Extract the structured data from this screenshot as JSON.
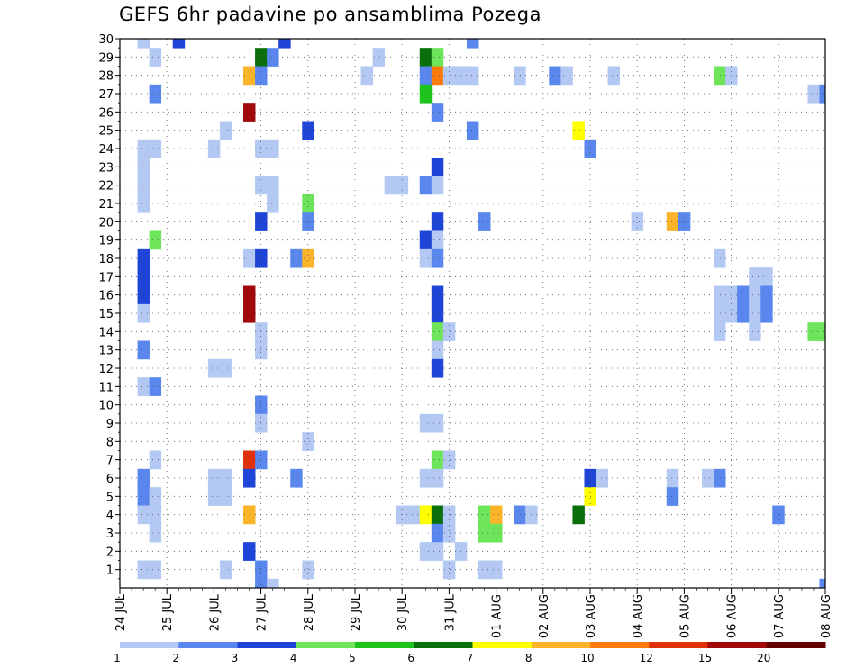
{
  "chart_data": {
    "type": "heatmap",
    "title": "GEFS 6hr padavine po ansamblima Pozega",
    "xlabel": "",
    "ylabel": "",
    "x_ticks": [
      "24 JUL",
      "25 JUL",
      "26 JUL",
      "27 JUL",
      "28 JUL",
      "29 JUL",
      "30 JUL",
      "31 JUL",
      "01 AUG",
      "02 AUG",
      "03 AUG",
      "04 AUG",
      "05 AUG",
      "06 AUG",
      "07 AUG",
      "08 AUG"
    ],
    "y_ticks": [
      "1",
      "2",
      "3",
      "4",
      "5",
      "6",
      "7",
      "8",
      "9",
      "10",
      "11",
      "12",
      "13",
      "14",
      "15",
      "16",
      "17",
      "18",
      "19",
      "20",
      "21",
      "22",
      "23",
      "24",
      "25",
      "26",
      "27",
      "28",
      "29",
      "30"
    ],
    "x_unit": "6-hour step from 24 JUL 00",
    "x_range": [
      0,
      60
    ],
    "y_range": [
      0,
      30
    ],
    "grid": true,
    "colorbar": {
      "position": "bottom",
      "labels": [
        "1",
        "2",
        "3",
        "4",
        "5",
        "6",
        "7",
        "8",
        "10",
        "12",
        "15",
        "20"
      ],
      "colors": [
        "#b4c8f4",
        "#5a87ee",
        "#1e44d8",
        "#6ee45a",
        "#1ec31e",
        "#0a6e0a",
        "#ffff00",
        "#fbb42a",
        "#fb7a0a",
        "#e0320a",
        "#a00a0a",
        "#640000"
      ]
    },
    "cells": [
      [
        2,
        30,
        1
      ],
      [
        5,
        30,
        3
      ],
      [
        14,
        30,
        3
      ],
      [
        30,
        30,
        2
      ],
      [
        3,
        29,
        1
      ],
      [
        12,
        29,
        6
      ],
      [
        13,
        29,
        2
      ],
      [
        22,
        29,
        1
      ],
      [
        26,
        29,
        6
      ],
      [
        27,
        29,
        4
      ],
      [
        11,
        28,
        8
      ],
      [
        12,
        28,
        2
      ],
      [
        21,
        28,
        1
      ],
      [
        26,
        28,
        2
      ],
      [
        27,
        28,
        9
      ],
      [
        28,
        28,
        1
      ],
      [
        29,
        28,
        1
      ],
      [
        30,
        28,
        1
      ],
      [
        34,
        28,
        1
      ],
      [
        37,
        28,
        2
      ],
      [
        38,
        28,
        1
      ],
      [
        42,
        28,
        1
      ],
      [
        51,
        28,
        4
      ],
      [
        52,
        28,
        1
      ],
      [
        3,
        27,
        2
      ],
      [
        26,
        27,
        5
      ],
      [
        59,
        27,
        1
      ],
      [
        60,
        27,
        2
      ],
      [
        11,
        26,
        11
      ],
      [
        27,
        26,
        2
      ],
      [
        9,
        25,
        1
      ],
      [
        16,
        25,
        3
      ],
      [
        30,
        25,
        2
      ],
      [
        39,
        25,
        7
      ],
      [
        2,
        24,
        1
      ],
      [
        3,
        24,
        1
      ],
      [
        8,
        24,
        1
      ],
      [
        12,
        24,
        1
      ],
      [
        13,
        24,
        1
      ],
      [
        40,
        24,
        2
      ],
      [
        2,
        23,
        1
      ],
      [
        27,
        23,
        3
      ],
      [
        2,
        22,
        1
      ],
      [
        12,
        22,
        1
      ],
      [
        13,
        22,
        1
      ],
      [
        23,
        22,
        1
      ],
      [
        24,
        22,
        1
      ],
      [
        26,
        22,
        2
      ],
      [
        27,
        22,
        1
      ],
      [
        2,
        21,
        1
      ],
      [
        13,
        21,
        1
      ],
      [
        16,
        21,
        4
      ],
      [
        12,
        20,
        3
      ],
      [
        16,
        20,
        2
      ],
      [
        27,
        20,
        3
      ],
      [
        31,
        20,
        2
      ],
      [
        44,
        20,
        1
      ],
      [
        47,
        20,
        8
      ],
      [
        48,
        20,
        2
      ],
      [
        3,
        19,
        4
      ],
      [
        26,
        19,
        3
      ],
      [
        27,
        19,
        1
      ],
      [
        2,
        18,
        3
      ],
      [
        11,
        18,
        1
      ],
      [
        12,
        18,
        3
      ],
      [
        15,
        18,
        2
      ],
      [
        16,
        18,
        8
      ],
      [
        26,
        18,
        1
      ],
      [
        27,
        18,
        2
      ],
      [
        51,
        18,
        1
      ],
      [
        2,
        17,
        3
      ],
      [
        54,
        17,
        1
      ],
      [
        55,
        17,
        1
      ],
      [
        2,
        16,
        3
      ],
      [
        11,
        16,
        11
      ],
      [
        27,
        16,
        3
      ],
      [
        51,
        16,
        1
      ],
      [
        52,
        16,
        1
      ],
      [
        53,
        16,
        2
      ],
      [
        54,
        16,
        1
      ],
      [
        55,
        16,
        2
      ],
      [
        2,
        15,
        1
      ],
      [
        11,
        15,
        11
      ],
      [
        27,
        15,
        3
      ],
      [
        51,
        15,
        1
      ],
      [
        52,
        15,
        1
      ],
      [
        53,
        15,
        2
      ],
      [
        54,
        15,
        1
      ],
      [
        55,
        15,
        2
      ],
      [
        12,
        14,
        1
      ],
      [
        27,
        14,
        4
      ],
      [
        28,
        14,
        1
      ],
      [
        51,
        14,
        1
      ],
      [
        54,
        14,
        1
      ],
      [
        59,
        14,
        4
      ],
      [
        60,
        14,
        4
      ],
      [
        2,
        13,
        2
      ],
      [
        12,
        13,
        1
      ],
      [
        27,
        13,
        1
      ],
      [
        8,
        12,
        1
      ],
      [
        9,
        12,
        1
      ],
      [
        27,
        12,
        3
      ],
      [
        2,
        11,
        1
      ],
      [
        3,
        11,
        2
      ],
      [
        12,
        10,
        2
      ],
      [
        12,
        9,
        1
      ],
      [
        26,
        9,
        1
      ],
      [
        27,
        9,
        1
      ],
      [
        16,
        8,
        1
      ],
      [
        3,
        7,
        1
      ],
      [
        11,
        7,
        10
      ],
      [
        12,
        7,
        2
      ],
      [
        27,
        7,
        4
      ],
      [
        28,
        7,
        1
      ],
      [
        2,
        6,
        2
      ],
      [
        8,
        6,
        1
      ],
      [
        9,
        6,
        1
      ],
      [
        11,
        6,
        3
      ],
      [
        15,
        6,
        2
      ],
      [
        26,
        6,
        1
      ],
      [
        27,
        6,
        1
      ],
      [
        40,
        6,
        3
      ],
      [
        41,
        6,
        1
      ],
      [
        47,
        6,
        1
      ],
      [
        50,
        6,
        1
      ],
      [
        51,
        6,
        2
      ],
      [
        2,
        5,
        2
      ],
      [
        3,
        5,
        1
      ],
      [
        8,
        5,
        1
      ],
      [
        9,
        5,
        1
      ],
      [
        40,
        5,
        7
      ],
      [
        47,
        5,
        2
      ],
      [
        2,
        4,
        1
      ],
      [
        3,
        4,
        1
      ],
      [
        11,
        4,
        8
      ],
      [
        24,
        4,
        1
      ],
      [
        25,
        4,
        1
      ],
      [
        26,
        4,
        7
      ],
      [
        27,
        4,
        6
      ],
      [
        28,
        4,
        1
      ],
      [
        31,
        4,
        4
      ],
      [
        32,
        4,
        8
      ],
      [
        34,
        4,
        2
      ],
      [
        35,
        4,
        1
      ],
      [
        39,
        4,
        6
      ],
      [
        56,
        4,
        2
      ],
      [
        3,
        3,
        1
      ],
      [
        27,
        3,
        2
      ],
      [
        28,
        3,
        1
      ],
      [
        31,
        3,
        4
      ],
      [
        32,
        3,
        4
      ],
      [
        11,
        2,
        3
      ],
      [
        26,
        2,
        1
      ],
      [
        27,
        2,
        1
      ],
      [
        29,
        2,
        1
      ],
      [
        2,
        1,
        1
      ],
      [
        3,
        1,
        1
      ],
      [
        9,
        1,
        1
      ],
      [
        12,
        1,
        2
      ],
      [
        16,
        1,
        1
      ],
      [
        28,
        1,
        1
      ],
      [
        31,
        1,
        1
      ],
      [
        32,
        1,
        1
      ],
      [
        12,
        0,
        2
      ],
      [
        13,
        0,
        1
      ],
      [
        60,
        0,
        2
      ]
    ]
  }
}
